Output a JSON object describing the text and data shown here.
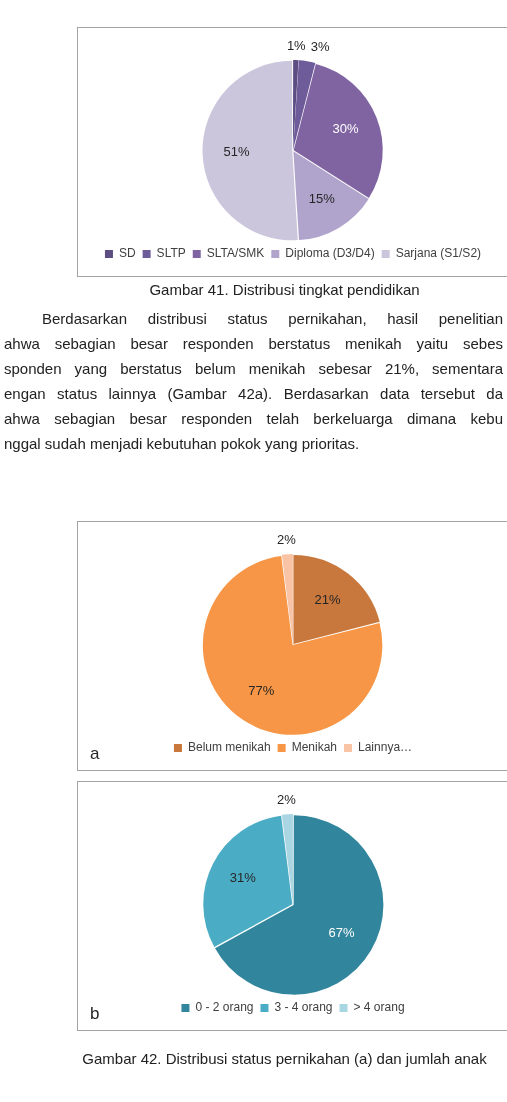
{
  "chart_data": [
    {
      "type": "pie",
      "categories": [
        "SD",
        "SLTP",
        "SLTA/SMK",
        "Diploma (D3/D4)",
        "Sarjana (S1/S2)"
      ],
      "values": [
        1,
        3,
        30,
        15,
        51
      ],
      "colors": [
        "#5c4d82",
        "#6e5b9a",
        "#8064a2",
        "#b0a4cc",
        "#cbc6dc"
      ],
      "value_labels": [
        "1%",
        "3%",
        "30%",
        "15%",
        "51%"
      ],
      "legend": "bottom",
      "annotations": [
        "Gambar 41. Distribusi tingkat pendidikan"
      ]
    },
    {
      "type": "other",
      "annotations": [
        "Berdasarkan distribusi status pernikahan, hasil penelitian",
        "ahwa sebagian besar responden berstatus menikah yaitu sebes",
        "sponden yang berstatus belum menikah sebesar 21%, sementara",
        "engan status lainnya (Gambar 42a). Berdasarkan data tersebut da",
        "ahwa sebagian besar responden telah berkeluarga dimana kebu",
        "nggal sudah menjadi kebutuhan pokok yang prioritas."
      ]
    },
    {
      "type": "pie",
      "title": "a",
      "categories": [
        "Belum menikah",
        "Menikah",
        "Lainnya…"
      ],
      "values": [
        21,
        77,
        2
      ],
      "colors": [
        "#c8783c",
        "#f69646",
        "#f9c3a6"
      ],
      "value_labels": [
        "21%",
        "77%",
        "2%"
      ],
      "legend": "bottom"
    },
    {
      "type": "pie",
      "title": "b",
      "categories": [
        "0 - 2 orang",
        "3 - 4 orang",
        "> 4 orang"
      ],
      "values": [
        67,
        31,
        2
      ],
      "colors": [
        "#31859c",
        "#4bacc6",
        "#a9d6e2"
      ],
      "value_labels": [
        "67%",
        "31%",
        "2%"
      ],
      "legend": "bottom",
      "annotations": [
        "Gambar 42. Distribusi status pernikahan (a) dan jumlah anak"
      ]
    }
  ]
}
